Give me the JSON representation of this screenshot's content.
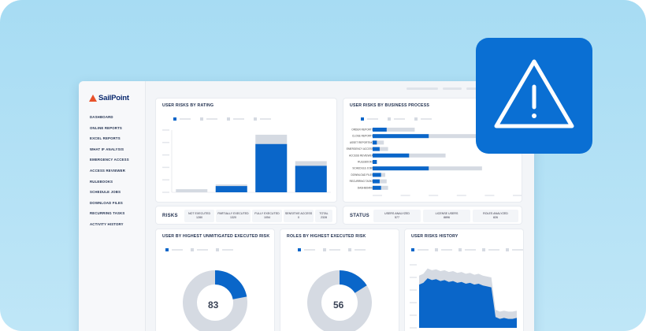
{
  "app": {
    "brand": "SailPoint"
  },
  "sidebar": {
    "items": [
      "DASHBOARD",
      "ONLINE REPORTS",
      "EXCEL REPORTS",
      "WHAT IF ANALYSIS",
      "EMERGENCY ACCESS",
      "ACCESS REVIEWER",
      "RULEBOOKS",
      "SCHEDULE JOBS",
      "DOWNLOAD FILES",
      "RECURRING TASKS",
      "ACTIVITY HISTORY"
    ]
  },
  "cards": {
    "risks_by_rating": {
      "title": "USER RISKS BY RATING"
    },
    "risks_by_process": {
      "title": "USER RISKS BY BUSINESS PROCESS"
    },
    "unmitigated": {
      "title": "USER BY HIGHEST UNMITIGATED EXECUTED RISK",
      "center_value": "83",
      "fraction": 0.22
    },
    "roles": {
      "title": "ROLES BY HIGHEST EXECUTED RISK",
      "center_value": "56",
      "fraction": 0.16
    },
    "history": {
      "title": "USER RISKS HISTORY"
    }
  },
  "risks_stats": {
    "label": "RISKS",
    "items": [
      {
        "title": "NOT EXECUTED",
        "value": "1280"
      },
      {
        "title": "PARTIALLY EXECUTED",
        "value": "1320"
      },
      {
        "title": "FULLY EXECUTED",
        "value": "1054"
      },
      {
        "title": "SENSITIVE ACCESS",
        "value": "0"
      },
      {
        "title": "TOTAL",
        "value": "2328"
      }
    ]
  },
  "status_stats": {
    "label": "STATUS",
    "items": [
      {
        "title": "USERS ANALYZED",
        "value": "577"
      },
      {
        "title": "LICENSE USERS",
        "value": "8896"
      },
      {
        "title": "ROLES ANALYZED",
        "value": "826"
      }
    ]
  },
  "colors": {
    "accent": "#0a66c9",
    "alert": "#0a6fd3",
    "muted": "#d5dae2"
  },
  "icons": {
    "alert": "warning-triangle-icon"
  },
  "chart_data": [
    {
      "type": "bar",
      "title": "USER RISKS BY RATING",
      "categories": [
        "",
        "",
        "",
        ""
      ],
      "series": [
        {
          "values": [
            2,
            5,
            37,
            20
          ]
        },
        {
          "values": [
            0,
            4,
            31,
            17
          ]
        }
      ]
    },
    {
      "type": "bar",
      "title": "USER RISKS BY BUSINESS PROCESS",
      "orientation": "horizontal",
      "categories": [
        "ORDER REPORTS",
        "CLOSE REPORTS",
        "ASSET REPORTING",
        "EMERGENCY ACCESS",
        "ACCESS REVIEWER",
        "RULEBOOKS",
        "SCHEDULE JOBS",
        "DOWNLOAD FILES",
        "RECURRING TASKS",
        "DASHBOARD"
      ],
      "series": [
        {
          "values": [
            10,
            40,
            3,
            5,
            26,
            3,
            40,
            6,
            5,
            6
          ]
        },
        {
          "values": [
            30,
            80,
            8,
            11,
            52,
            0,
            78,
            9,
            10,
            11
          ]
        }
      ]
    },
    {
      "type": "pie",
      "title": "USER BY HIGHEST UNMITIGATED EXECUTED RISK",
      "values": [
        22,
        78
      ]
    },
    {
      "type": "pie",
      "title": "ROLES BY HIGHEST EXECUTED RISK",
      "values": [
        16,
        84
      ]
    },
    {
      "type": "area",
      "title": "USER RISKS HISTORY",
      "series": [
        {
          "values": [
            58,
            60,
            66,
            64,
            65,
            63,
            64,
            62,
            63,
            61,
            62,
            60,
            61,
            59,
            60,
            58,
            57,
            56,
            20,
            18,
            19,
            18,
            18,
            19
          ]
        },
        {
          "values": [
            48,
            50,
            55,
            53,
            54,
            52,
            53,
            51,
            52,
            50,
            51,
            49,
            50,
            48,
            49,
            47,
            46,
            45,
            12,
            10,
            11,
            10,
            10,
            11
          ]
        }
      ]
    }
  ]
}
